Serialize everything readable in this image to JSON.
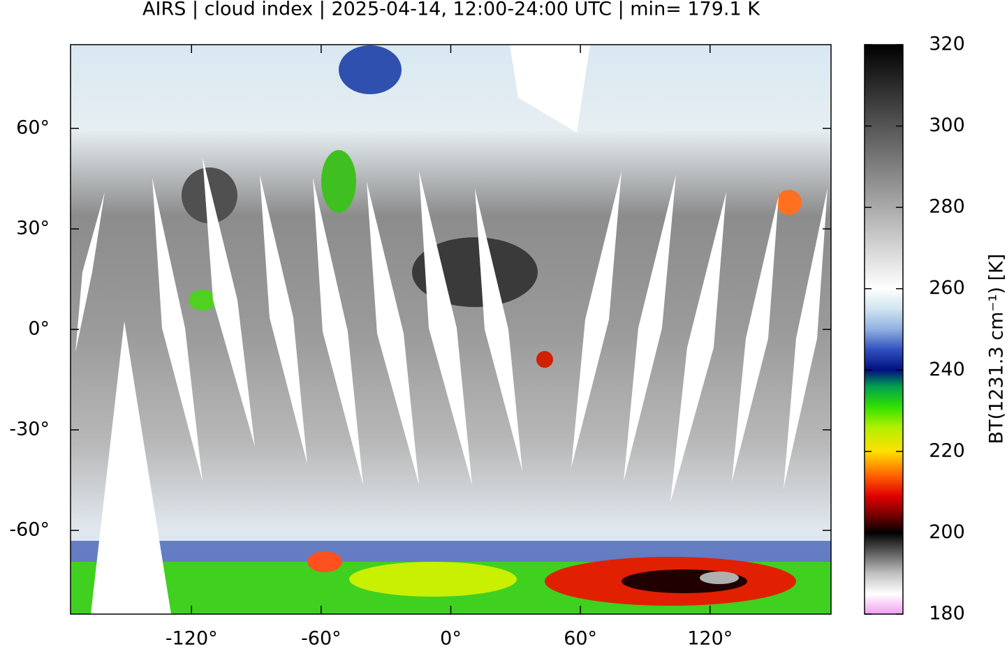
{
  "chart_data": {
    "type": "map",
    "title": "AIRS | cloud index | 2025-04-14, 12:00-24:00 UTC | min= 179.1 K",
    "xlim": [
      -176,
      176
    ],
    "ylim": [
      -85,
      85
    ],
    "xticks": [
      {
        "value": -120,
        "label": "-120°"
      },
      {
        "value": -60,
        "label": "-60°"
      },
      {
        "value": 0,
        "label": "0°"
      },
      {
        "value": 60,
        "label": "60°"
      },
      {
        "value": 120,
        "label": "120°"
      }
    ],
    "yticks": [
      {
        "value": -60,
        "label": "-60°"
      },
      {
        "value": -30,
        "label": "-30°"
      },
      {
        "value": 0,
        "label": "0°"
      },
      {
        "value": 30,
        "label": "30°"
      },
      {
        "value": 60,
        "label": "60°"
      }
    ],
    "colorbar": {
      "label": "BT(1231.3 cm⁻¹) [K]",
      "lim": [
        180,
        320
      ],
      "ticks": [
        180,
        200,
        220,
        240,
        260,
        280,
        300,
        320
      ],
      "colormap": [
        {
          "value": 180,
          "color": "#f0a0f0"
        },
        {
          "value": 185,
          "color": "#ffffff"
        },
        {
          "value": 190,
          "color": "#c0c0c0"
        },
        {
          "value": 200,
          "color": "#000000"
        },
        {
          "value": 204,
          "color": "#700000"
        },
        {
          "value": 209,
          "color": "#e00000"
        },
        {
          "value": 214,
          "color": "#ff6000"
        },
        {
          "value": 220,
          "color": "#ffe000"
        },
        {
          "value": 226,
          "color": "#b0f000"
        },
        {
          "value": 231,
          "color": "#30e000"
        },
        {
          "value": 236,
          "color": "#00a050"
        },
        {
          "value": 240,
          "color": "#001080"
        },
        {
          "value": 245,
          "color": "#3050c0"
        },
        {
          "value": 250,
          "color": "#90b0e0"
        },
        {
          "value": 255,
          "color": "#d0e4f0"
        },
        {
          "value": 260,
          "color": "#ffffff"
        },
        {
          "value": 320,
          "color": "#000000"
        }
      ]
    }
  }
}
